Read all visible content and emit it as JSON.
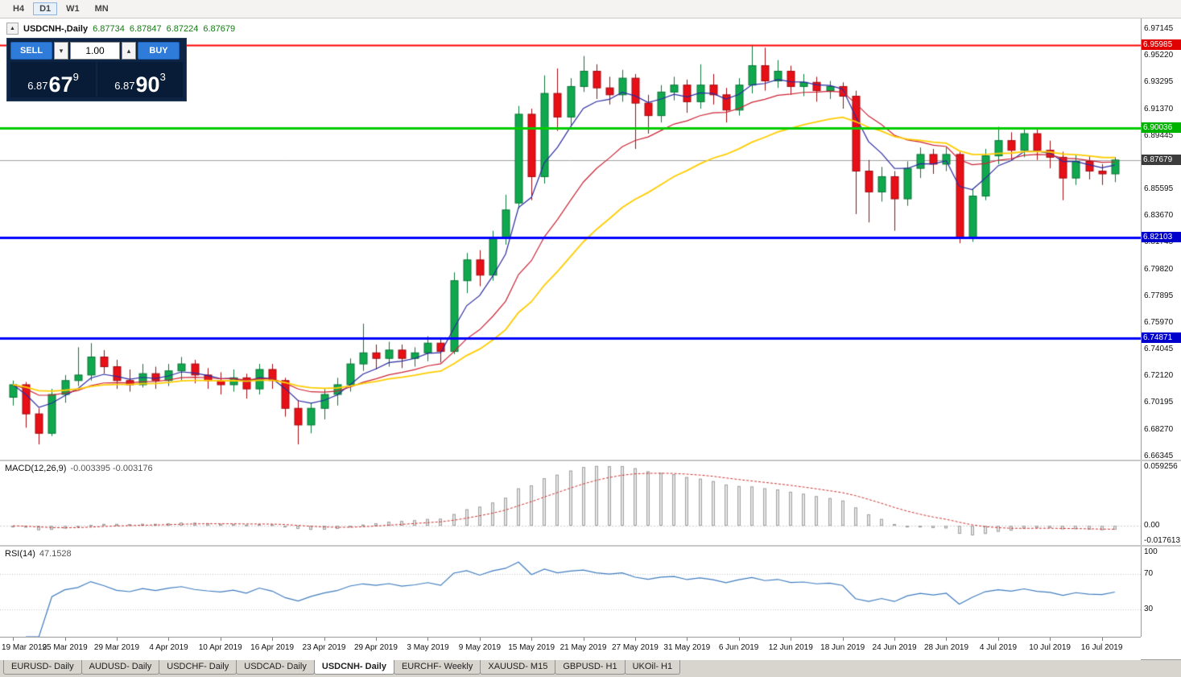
{
  "toolbar": {
    "timeframes": [
      "H4",
      "D1",
      "W1",
      "MN"
    ],
    "active_timeframe": "D1"
  },
  "chart": {
    "title": {
      "collapse_icon": "▲",
      "symbol": "USDCNH-,Daily",
      "open": "6.87734",
      "high": "6.87847",
      "low": "6.87224",
      "close": "6.87679"
    },
    "trade_panel": {
      "sell_label": "SELL",
      "buy_label": "BUY",
      "volume": "1.00",
      "spin_down": "▾",
      "spin_up": "▴",
      "bid": {
        "prefix": "6.87",
        "big": "67",
        "sup": "9"
      },
      "ask": {
        "prefix": "6.87",
        "big": "90",
        "sup": "3"
      }
    },
    "price_axis": {
      "labels": [
        "6.97145",
        "6.95220",
        "6.93295",
        "6.91370",
        "6.89445",
        "6.87520",
        "6.85595",
        "6.83670",
        "6.81745",
        "6.79820",
        "6.77895",
        "6.75970",
        "6.74045",
        "6.72120",
        "6.70195",
        "6.68270",
        "6.66345"
      ],
      "badges": [
        {
          "value": "6.95985",
          "color": "#e00000"
        },
        {
          "value": "6.90036",
          "color": "#00b300"
        },
        {
          "value": "6.87679",
          "color": "#3c3c3c"
        },
        {
          "value": "6.82103",
          "color": "#0000cc"
        },
        {
          "value": "6.74871",
          "color": "#0000cc"
        }
      ]
    },
    "hlines": [
      {
        "price": 6.87679,
        "color": "#a0a0a0",
        "width": 1,
        "layer": "below"
      },
      {
        "price": 6.95985,
        "color": "#ff0000",
        "width": 2,
        "layer": "above"
      },
      {
        "price": 6.90036,
        "color": "#00cc00",
        "width": 3,
        "layer": "above"
      },
      {
        "price": 6.82103,
        "color": "#0000ff",
        "width": 3,
        "layer": "above"
      },
      {
        "price": 6.74871,
        "color": "#0000ff",
        "width": 3,
        "layer": "above"
      }
    ]
  },
  "chart_data": {
    "type": "candlestick",
    "symbol": "USDCNH",
    "timeframe": "Daily",
    "price_range": {
      "min": 6.661,
      "max": 6.979
    },
    "colors": {
      "up": "#0fa84e",
      "up_border": "#0a7437",
      "down": "#e90f17",
      "down_border": "#9d0b10",
      "macd_signal": "#d03030",
      "rsi_line": "#3f7cbf"
    },
    "moving_averages": [
      {
        "period": 5,
        "color": "#2a2aa0",
        "width": 1.2
      },
      {
        "period": 13,
        "color": "#cc2233",
        "width": 1.2
      },
      {
        "period": 24,
        "color": "#ffcc00",
        "width": 1.8
      }
    ],
    "x_tick_step": 4,
    "x_labels": [
      "19 Mar 2019",
      "25 Mar 2019",
      "29 Mar 2019",
      "4 Apr 2019",
      "10 Apr 2019",
      "16 Apr 2019",
      "23 Apr 2019",
      "29 Apr 2019",
      "3 May 2019",
      "9 May 2019",
      "15 May 2019",
      "21 May 2019",
      "27 May 2019",
      "31 May 2019",
      "6 Jun 2019",
      "12 Jun 2019",
      "18 Jun 2019",
      "24 Jun 2019",
      "28 Jun 2019",
      "4 Jul 2019",
      "10 Jul 2019",
      "16 Jul 2019"
    ],
    "candles": {
      "format": [
        "open",
        "high",
        "low",
        "close"
      ],
      "ohlc": [
        [
          6.706,
          6.718,
          6.7,
          6.715
        ],
        [
          6.715,
          6.717,
          6.684,
          6.694
        ],
        [
          6.694,
          6.698,
          6.672,
          6.68
        ],
        [
          6.68,
          6.712,
          6.678,
          6.708
        ],
        [
          6.708,
          6.722,
          6.702,
          6.718
        ],
        [
          6.718,
          6.742,
          6.714,
          6.722
        ],
        [
          6.722,
          6.745,
          6.718,
          6.735
        ],
        [
          6.735,
          6.74,
          6.723,
          6.728
        ],
        [
          6.728,
          6.733,
          6.712,
          6.718
        ],
        [
          6.718,
          6.726,
          6.71,
          6.715
        ],
        [
          6.715,
          6.73,
          6.713,
          6.723
        ],
        [
          6.723,
          6.728,
          6.712,
          6.718
        ],
        [
          6.718,
          6.73,
          6.714,
          6.725
        ],
        [
          6.725,
          6.735,
          6.718,
          6.73
        ],
        [
          6.73,
          6.733,
          6.716,
          6.722
        ],
        [
          6.722,
          6.727,
          6.712,
          6.718
        ],
        [
          6.718,
          6.724,
          6.708,
          6.715
        ],
        [
          6.715,
          6.726,
          6.71,
          6.72
        ],
        [
          6.72,
          6.723,
          6.705,
          6.712
        ],
        [
          6.712,
          6.73,
          6.708,
          6.726
        ],
        [
          6.726,
          6.73,
          6.712,
          6.718
        ],
        [
          6.718,
          6.72,
          6.692,
          6.698
        ],
        [
          6.698,
          6.704,
          6.672,
          6.686
        ],
        [
          6.686,
          6.702,
          6.68,
          6.698
        ],
        [
          6.698,
          6.712,
          6.69,
          6.708
        ],
        [
          6.708,
          6.72,
          6.7,
          6.715
        ],
        [
          6.715,
          6.734,
          6.71,
          6.73
        ],
        [
          6.73,
          6.759,
          6.725,
          6.738
        ],
        [
          6.738,
          6.744,
          6.726,
          6.734
        ],
        [
          6.734,
          6.746,
          6.728,
          6.74
        ],
        [
          6.74,
          6.744,
          6.727,
          6.734
        ],
        [
          6.734,
          6.742,
          6.728,
          6.738
        ],
        [
          6.738,
          6.75,
          6.732,
          6.745
        ],
        [
          6.745,
          6.748,
          6.731,
          6.739
        ],
        [
          6.739,
          6.796,
          6.737,
          6.79
        ],
        [
          6.79,
          6.81,
          6.781,
          6.805
        ],
        [
          6.805,
          6.812,
          6.786,
          6.794
        ],
        [
          6.794,
          6.826,
          6.79,
          6.821
        ],
        [
          6.821,
          6.852,
          6.816,
          6.841
        ],
        [
          6.846,
          6.916,
          6.842,
          6.91
        ],
        [
          6.91,
          6.914,
          6.848,
          6.865
        ],
        [
          6.865,
          6.938,
          6.86,
          6.925
        ],
        [
          6.925,
          6.943,
          6.898,
          6.908
        ],
        [
          6.908,
          6.936,
          6.902,
          6.93
        ],
        [
          6.93,
          6.952,
          6.926,
          6.941
        ],
        [
          6.941,
          6.946,
          6.921,
          6.929
        ],
        [
          6.929,
          6.937,
          6.917,
          6.924
        ],
        [
          6.924,
          6.942,
          6.919,
          6.936
        ],
        [
          6.936,
          6.939,
          6.885,
          6.918
        ],
        [
          6.918,
          6.924,
          6.896,
          6.909
        ],
        [
          6.909,
          6.931,
          6.904,
          6.926
        ],
        [
          6.926,
          6.937,
          6.92,
          6.931
        ],
        [
          6.931,
          6.935,
          6.911,
          6.919
        ],
        [
          6.919,
          6.946,
          6.914,
          6.931
        ],
        [
          6.931,
          6.939,
          6.917,
          6.924
        ],
        [
          6.924,
          6.929,
          6.904,
          6.913
        ],
        [
          6.913,
          6.936,
          6.909,
          6.931
        ],
        [
          6.931,
          6.96,
          6.925,
          6.945
        ],
        [
          6.945,
          6.958,
          6.927,
          6.934
        ],
        [
          6.934,
          6.949,
          6.929,
          6.941
        ],
        [
          6.941,
          6.945,
          6.924,
          6.93
        ],
        [
          6.93,
          6.939,
          6.923,
          6.933
        ],
        [
          6.933,
          6.937,
          6.919,
          6.927
        ],
        [
          6.927,
          6.934,
          6.921,
          6.93
        ],
        [
          6.93,
          6.933,
          6.914,
          6.923
        ],
        [
          6.923,
          6.927,
          6.838,
          6.869
        ],
        [
          6.869,
          6.877,
          6.832,
          6.854
        ],
        [
          6.854,
          6.872,
          6.847,
          6.865
        ],
        [
          6.865,
          6.869,
          6.826,
          6.849
        ],
        [
          6.849,
          6.876,
          6.844,
          6.871
        ],
        [
          6.871,
          6.886,
          6.864,
          6.881
        ],
        [
          6.881,
          6.885,
          6.867,
          6.874
        ],
        [
          6.874,
          6.886,
          6.869,
          6.881
        ],
        [
          6.881,
          6.883,
          6.817,
          6.821
        ],
        [
          6.821,
          6.856,
          6.818,
          6.851
        ],
        [
          6.851,
          6.885,
          6.848,
          6.88
        ],
        [
          6.88,
          6.901,
          6.874,
          6.891
        ],
        [
          6.891,
          6.897,
          6.877,
          6.884
        ],
        [
          6.884,
          6.9,
          6.879,
          6.896
        ],
        [
          6.896,
          6.899,
          6.877,
          6.884
        ],
        [
          6.884,
          6.891,
          6.871,
          6.879
        ],
        [
          6.879,
          6.883,
          6.848,
          6.864
        ],
        [
          6.864,
          6.881,
          6.859,
          6.876
        ],
        [
          6.876,
          6.88,
          6.863,
          6.869
        ],
        [
          6.869,
          6.874,
          6.859,
          6.867
        ],
        [
          6.867,
          6.879,
          6.861,
          6.877
        ]
      ]
    },
    "indicators": {
      "macd": {
        "label": "MACD(12,26,9)",
        "values_text": "-0.003395 -0.003176",
        "fast": 12,
        "slow": 26,
        "signal": 9,
        "axis": {
          "max": "0.059256",
          "zero": "0.00",
          "min": "-0.017613"
        }
      },
      "rsi": {
        "label": "RSI(14)",
        "value_text": "47.1528",
        "period": 14,
        "levels": [
          70,
          30
        ],
        "axis": [
          "100",
          "70",
          "30"
        ]
      }
    }
  },
  "bottom_tabs": {
    "labels": [
      "EURUSD- Daily",
      "AUDUSD- Daily",
      "USDCHF- Daily",
      "USDCAD- Daily",
      "USDCNH- Daily",
      "EURCHF- Weekly",
      "XAUUSD- M15",
      "GBPUSD- H1",
      "UKOil- H1"
    ],
    "active": "USDCNH- Daily"
  }
}
